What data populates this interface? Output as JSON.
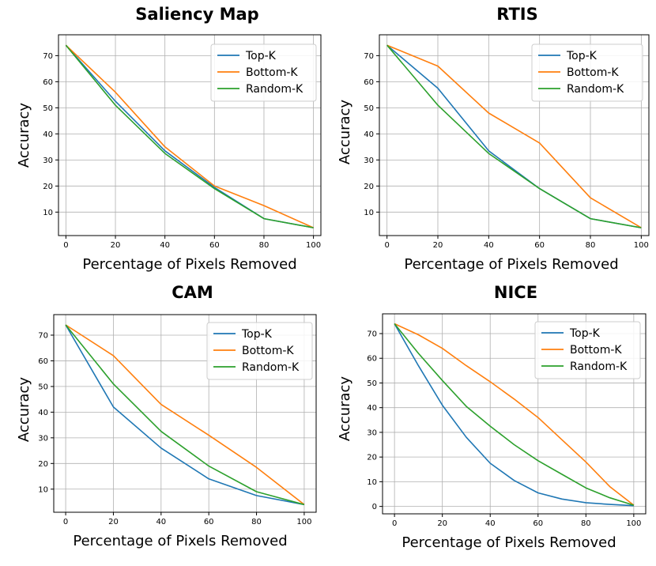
{
  "chart_data": [
    {
      "type": "line",
      "title": "Saliency Map",
      "xlabel": "Percentage of Pixels Removed",
      "ylabel": "Accuracy",
      "xlim": [
        -3,
        103
      ],
      "ylim": [
        1,
        78
      ],
      "xticks": [
        0,
        20,
        40,
        60,
        80,
        100
      ],
      "yticks": [
        10,
        20,
        30,
        40,
        50,
        60,
        70
      ],
      "legend_position": "top-right",
      "grid": true,
      "series": [
        {
          "name": "Top-K",
          "color": "#1f77b4",
          "x": [
            0,
            20,
            40,
            60,
            80,
            100
          ],
          "y": [
            74,
            52.5,
            33.5,
            19.5,
            7.5,
            4
          ]
        },
        {
          "name": "Bottom-K",
          "color": "#ff7f0e",
          "x": [
            0,
            20,
            40,
            60,
            80,
            100
          ],
          "y": [
            74,
            56,
            35,
            20,
            12.5,
            4
          ]
        },
        {
          "name": "Random-K",
          "color": "#2ca02c",
          "x": [
            0,
            20,
            40,
            60,
            80,
            100
          ],
          "y": [
            74,
            51,
            32.5,
            19,
            7.5,
            4
          ]
        }
      ]
    },
    {
      "type": "line",
      "title": "RTIS",
      "xlabel": "Percentage of Pixels Removed",
      "ylabel": "Accuracy",
      "xlim": [
        -3,
        103
      ],
      "ylim": [
        1,
        78
      ],
      "xticks": [
        0,
        20,
        40,
        60,
        80,
        100
      ],
      "yticks": [
        10,
        20,
        30,
        40,
        50,
        60,
        70
      ],
      "legend_position": "top-right",
      "grid": true,
      "series": [
        {
          "name": "Top-K",
          "color": "#1f77b4",
          "x": [
            0,
            20,
            40,
            60,
            80,
            100
          ],
          "y": [
            74,
            57.5,
            33.5,
            19,
            7.5,
            4
          ]
        },
        {
          "name": "Bottom-K",
          "color": "#ff7f0e",
          "x": [
            0,
            20,
            40,
            60,
            80,
            100
          ],
          "y": [
            74,
            66,
            48,
            36.5,
            15.5,
            4
          ]
        },
        {
          "name": "Random-K",
          "color": "#2ca02c",
          "x": [
            0,
            20,
            40,
            60,
            80,
            100
          ],
          "y": [
            74,
            51,
            32.5,
            19,
            7.5,
            4
          ]
        }
      ]
    },
    {
      "type": "line",
      "title": "CAM",
      "xlabel": "Percentage of Pixels Removed",
      "ylabel": "Accuracy",
      "xlim": [
        -5,
        105
      ],
      "ylim": [
        1,
        78
      ],
      "xticks": [
        0,
        20,
        40,
        60,
        80,
        100
      ],
      "yticks": [
        10,
        20,
        30,
        40,
        50,
        60,
        70
      ],
      "legend_position": "top-right",
      "grid": true,
      "series": [
        {
          "name": "Top-K",
          "color": "#1f77b4",
          "x": [
            0,
            20,
            40,
            60,
            80,
            100
          ],
          "y": [
            74,
            42,
            26,
            14,
            7.5,
            4
          ]
        },
        {
          "name": "Bottom-K",
          "color": "#ff7f0e",
          "x": [
            0,
            20,
            40,
            60,
            80,
            100
          ],
          "y": [
            74,
            62,
            43,
            31,
            18.5,
            4
          ]
        },
        {
          "name": "Random-K",
          "color": "#2ca02c",
          "x": [
            0,
            20,
            40,
            60,
            80,
            100
          ],
          "y": [
            74,
            51,
            32.5,
            19,
            9,
            4
          ]
        }
      ]
    },
    {
      "type": "line",
      "title": "NICE",
      "xlabel": "Percentage of Pixels Removed",
      "ylabel": "Accuracy",
      "xlim": [
        -5,
        105
      ],
      "ylim": [
        -3,
        78
      ],
      "xticks": [
        0,
        20,
        40,
        60,
        80,
        100
      ],
      "yticks": [
        0,
        10,
        20,
        30,
        40,
        50,
        60,
        70
      ],
      "legend_position": "top-right",
      "grid": true,
      "series": [
        {
          "name": "Top-K",
          "color": "#1f77b4",
          "x": [
            0,
            10,
            20,
            30,
            40,
            50,
            60,
            70,
            80,
            90,
            100
          ],
          "y": [
            74,
            57,
            41,
            28,
            17.5,
            10.5,
            5.5,
            3,
            1.5,
            0.8,
            0.3
          ]
        },
        {
          "name": "Bottom-K",
          "color": "#ff7f0e",
          "x": [
            0,
            10,
            20,
            30,
            40,
            50,
            60,
            70,
            80,
            90,
            100
          ],
          "y": [
            74,
            69.5,
            64,
            57,
            50.5,
            43.5,
            36,
            27,
            18,
            8,
            0.5
          ]
        },
        {
          "name": "Random-K",
          "color": "#2ca02c",
          "x": [
            0,
            10,
            20,
            30,
            40,
            50,
            60,
            70,
            80,
            90,
            100
          ],
          "y": [
            74,
            62,
            51,
            40.5,
            32.5,
            25,
            18.5,
            13,
            7.5,
            3.5,
            0.5
          ]
        }
      ]
    }
  ]
}
